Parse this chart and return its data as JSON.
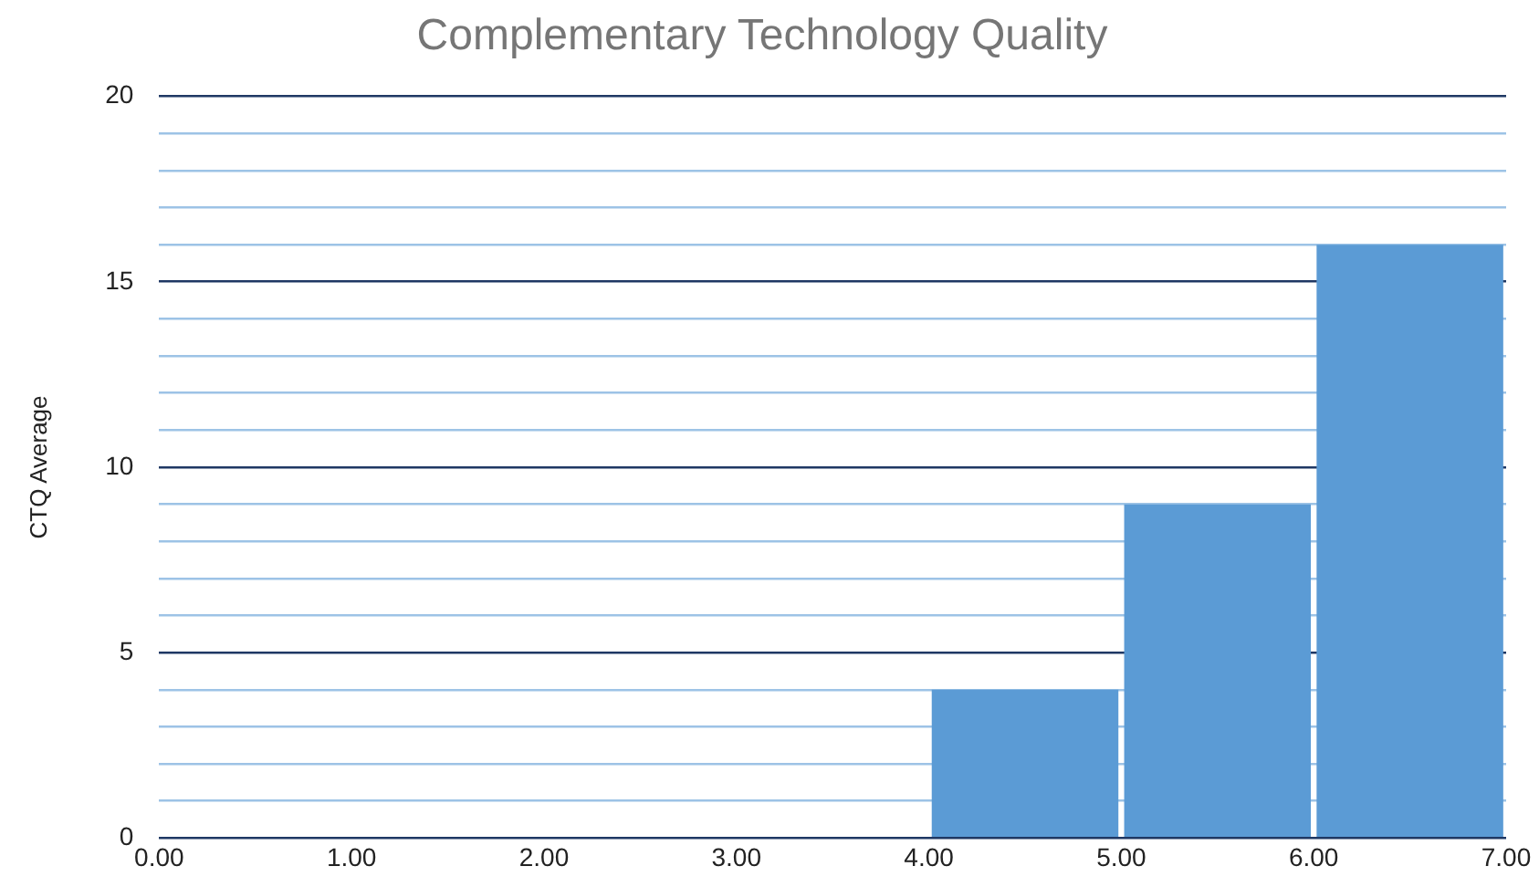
{
  "chart_data": {
    "type": "histogram",
    "title": "Complementary Technology Quality",
    "ylabel": "CTQ Average",
    "bins": [
      0,
      1,
      2,
      3,
      4,
      5,
      6,
      7
    ],
    "values": [
      0,
      0,
      0,
      0,
      4,
      9,
      16
    ],
    "color": "#5b9bd5",
    "xlim": [
      0,
      7
    ],
    "xticks": [
      {
        "value": 0,
        "label": "0.00"
      },
      {
        "value": 1,
        "label": "1.00"
      },
      {
        "value": 2,
        "label": "2.00"
      },
      {
        "value": 3,
        "label": "3.00"
      },
      {
        "value": 4,
        "label": "4.00"
      },
      {
        "value": 5,
        "label": "5.00"
      },
      {
        "value": 6,
        "label": "6.00"
      },
      {
        "value": 7,
        "label": "7.00"
      }
    ],
    "ylim": [
      0,
      20
    ],
    "yticks": [
      0,
      {
        "value": 1,
        "label": null
      },
      {
        "value": 2,
        "label": null
      },
      {
        "value": 3,
        "label": null
      },
      {
        "value": 4,
        "label": null
      },
      5,
      {
        "value": 6,
        "label": null
      },
      {
        "value": 7,
        "label": null
      },
      {
        "value": 8,
        "label": null
      },
      {
        "value": 9,
        "label": null
      },
      10,
      {
        "value": 11,
        "label": null
      },
      {
        "value": 12,
        "label": null
      },
      {
        "value": 13,
        "label": null
      },
      {
        "value": 14,
        "label": null
      },
      15,
      {
        "value": 16,
        "label": null
      },
      {
        "value": 17,
        "label": null
      },
      {
        "value": 18,
        "label": null
      },
      {
        "value": 19,
        "label": null
      },
      20
    ],
    "grid": "y",
    "legend": false
  }
}
